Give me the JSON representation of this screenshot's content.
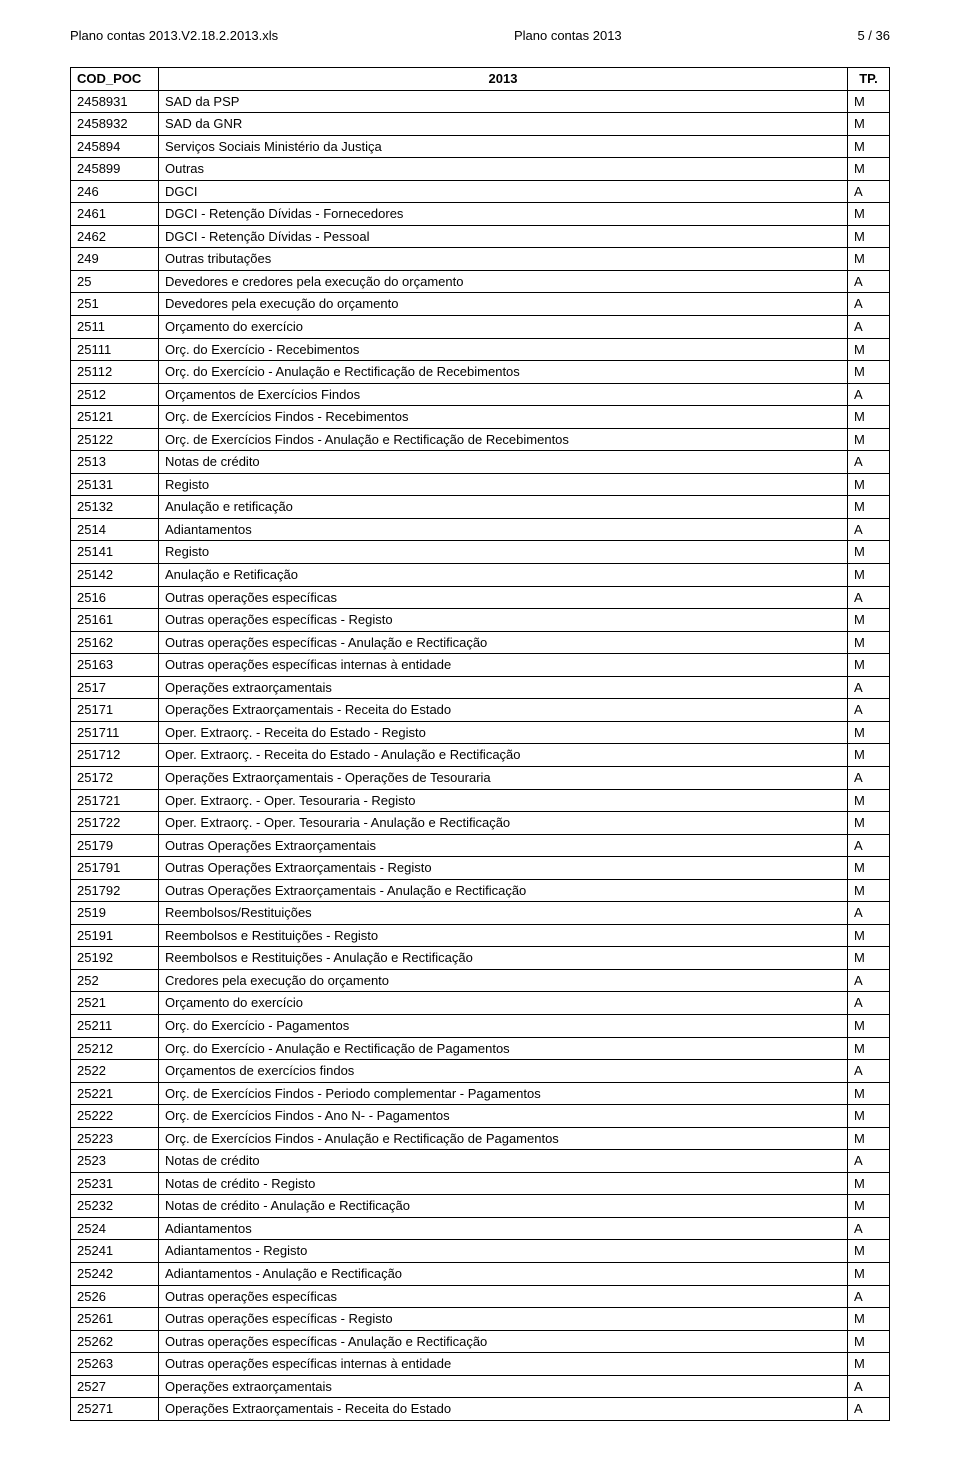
{
  "header": {
    "left": "Plano contas 2013.V2.18.2.2013.xls",
    "center": "Plano contas 2013",
    "right": "5 / 36"
  },
  "table": {
    "columns": [
      "COD_POC",
      "2013",
      "TP."
    ],
    "rows": [
      [
        "2458931",
        "SAD da PSP",
        "M"
      ],
      [
        "2458932",
        "SAD da GNR",
        "M"
      ],
      [
        "245894",
        "Serviços Sociais Ministério da Justiça",
        "M"
      ],
      [
        "245899",
        "Outras",
        "M"
      ],
      [
        "246",
        "DGCI",
        "A"
      ],
      [
        "2461",
        "DGCI - Retenção Dívidas - Fornecedores",
        "M"
      ],
      [
        "2462",
        "DGCI - Retenção Dívidas - Pessoal",
        "M"
      ],
      [
        "249",
        "Outras tributações",
        "M"
      ],
      [
        "25",
        "Devedores e credores pela execução do orçamento",
        "A"
      ],
      [
        "251",
        "Devedores pela execução do orçamento",
        "A"
      ],
      [
        "2511",
        "Orçamento do exercício",
        "A"
      ],
      [
        "25111",
        "Orç. do Exercício - Recebimentos",
        "M"
      ],
      [
        "25112",
        "Orç. do Exercício - Anulação e Rectificação de Recebimentos",
        "M"
      ],
      [
        "2512",
        "Orçamentos de Exercícios Findos",
        "A"
      ],
      [
        "25121",
        "Orç. de Exercícios Findos - Recebimentos",
        "M"
      ],
      [
        "25122",
        "Orç. de Exercícios Findos - Anulação e Rectificação de Recebimentos",
        "M"
      ],
      [
        "2513",
        "Notas de crédito",
        "A"
      ],
      [
        "25131",
        "Registo",
        "M"
      ],
      [
        "25132",
        "Anulação e retificação",
        "M"
      ],
      [
        "2514",
        "Adiantamentos",
        "A"
      ],
      [
        "25141",
        "Registo",
        "M"
      ],
      [
        "25142",
        "Anulação e Retificação",
        "M"
      ],
      [
        "2516",
        "Outras operações específicas",
        "A"
      ],
      [
        "25161",
        "Outras operações específicas - Registo",
        "M"
      ],
      [
        "25162",
        "Outras operações específicas - Anulação e Rectificação",
        "M"
      ],
      [
        "25163",
        "Outras operações específicas internas à entidade",
        "M"
      ],
      [
        "2517",
        "Operações extraorçamentais",
        "A"
      ],
      [
        "25171",
        "Operações Extraorçamentais - Receita do Estado",
        "A"
      ],
      [
        "251711",
        "Oper. Extraorç. - Receita do Estado - Registo",
        "M"
      ],
      [
        "251712",
        "Oper. Extraorç. - Receita do Estado - Anulação e Rectificação",
        "M"
      ],
      [
        "25172",
        "Operações Extraorçamentais - Operações de Tesouraria",
        "A"
      ],
      [
        "251721",
        "Oper. Extraorç. - Oper. Tesouraria - Registo",
        "M"
      ],
      [
        "251722",
        "Oper. Extraorç. - Oper. Tesouraria - Anulação e Rectificação",
        "M"
      ],
      [
        "25179",
        "Outras Operações Extraorçamentais",
        "A"
      ],
      [
        "251791",
        "Outras Operações Extraorçamentais - Registo",
        "M"
      ],
      [
        "251792",
        "Outras Operações Extraorçamentais - Anulação e Rectificação",
        "M"
      ],
      [
        "2519",
        "Reembolsos/Restituições",
        "A"
      ],
      [
        "25191",
        "Reembolsos e Restituições - Registo",
        "M"
      ],
      [
        "25192",
        "Reembolsos e Restituições - Anulação e Rectificação",
        "M"
      ],
      [
        "252",
        "Credores pela execução do orçamento",
        "A"
      ],
      [
        "2521",
        "Orçamento do exercício",
        "A"
      ],
      [
        "25211",
        "Orç. do Exercício - Pagamentos",
        "M"
      ],
      [
        "25212",
        "Orç. do Exercício - Anulação e Rectificação de Pagamentos",
        "M"
      ],
      [
        "2522",
        "Orçamentos de exercícios findos",
        "A"
      ],
      [
        "25221",
        "Orç. de Exercícios Findos - Periodo complementar - Pagamentos",
        "M"
      ],
      [
        "25222",
        "Orç. de Exercícios Findos - Ano N- - Pagamentos",
        "M"
      ],
      [
        "25223",
        "Orç. de Exercícios Findos - Anulação e Rectificação de Pagamentos",
        "M"
      ],
      [
        "2523",
        "Notas de crédito",
        "A"
      ],
      [
        "25231",
        "Notas de crédito - Registo",
        "M"
      ],
      [
        "25232",
        "Notas de crédito - Anulação e Rectificação",
        "M"
      ],
      [
        "2524",
        "Adiantamentos",
        "A"
      ],
      [
        "25241",
        "Adiantamentos - Registo",
        "M"
      ],
      [
        "25242",
        "Adiantamentos - Anulação e Rectificação",
        "M"
      ],
      [
        "2526",
        "Outras operações específicas",
        "A"
      ],
      [
        "25261",
        "Outras operações específicas - Registo",
        "M"
      ],
      [
        "25262",
        "Outras operações específicas - Anulação e Rectificação",
        "M"
      ],
      [
        "25263",
        "Outras operações específicas internas à entidade",
        "M"
      ],
      [
        "2527",
        "Operações extraorçamentais",
        "A"
      ],
      [
        "25271",
        "Operações Extraorçamentais - Receita do Estado",
        "A"
      ]
    ]
  }
}
